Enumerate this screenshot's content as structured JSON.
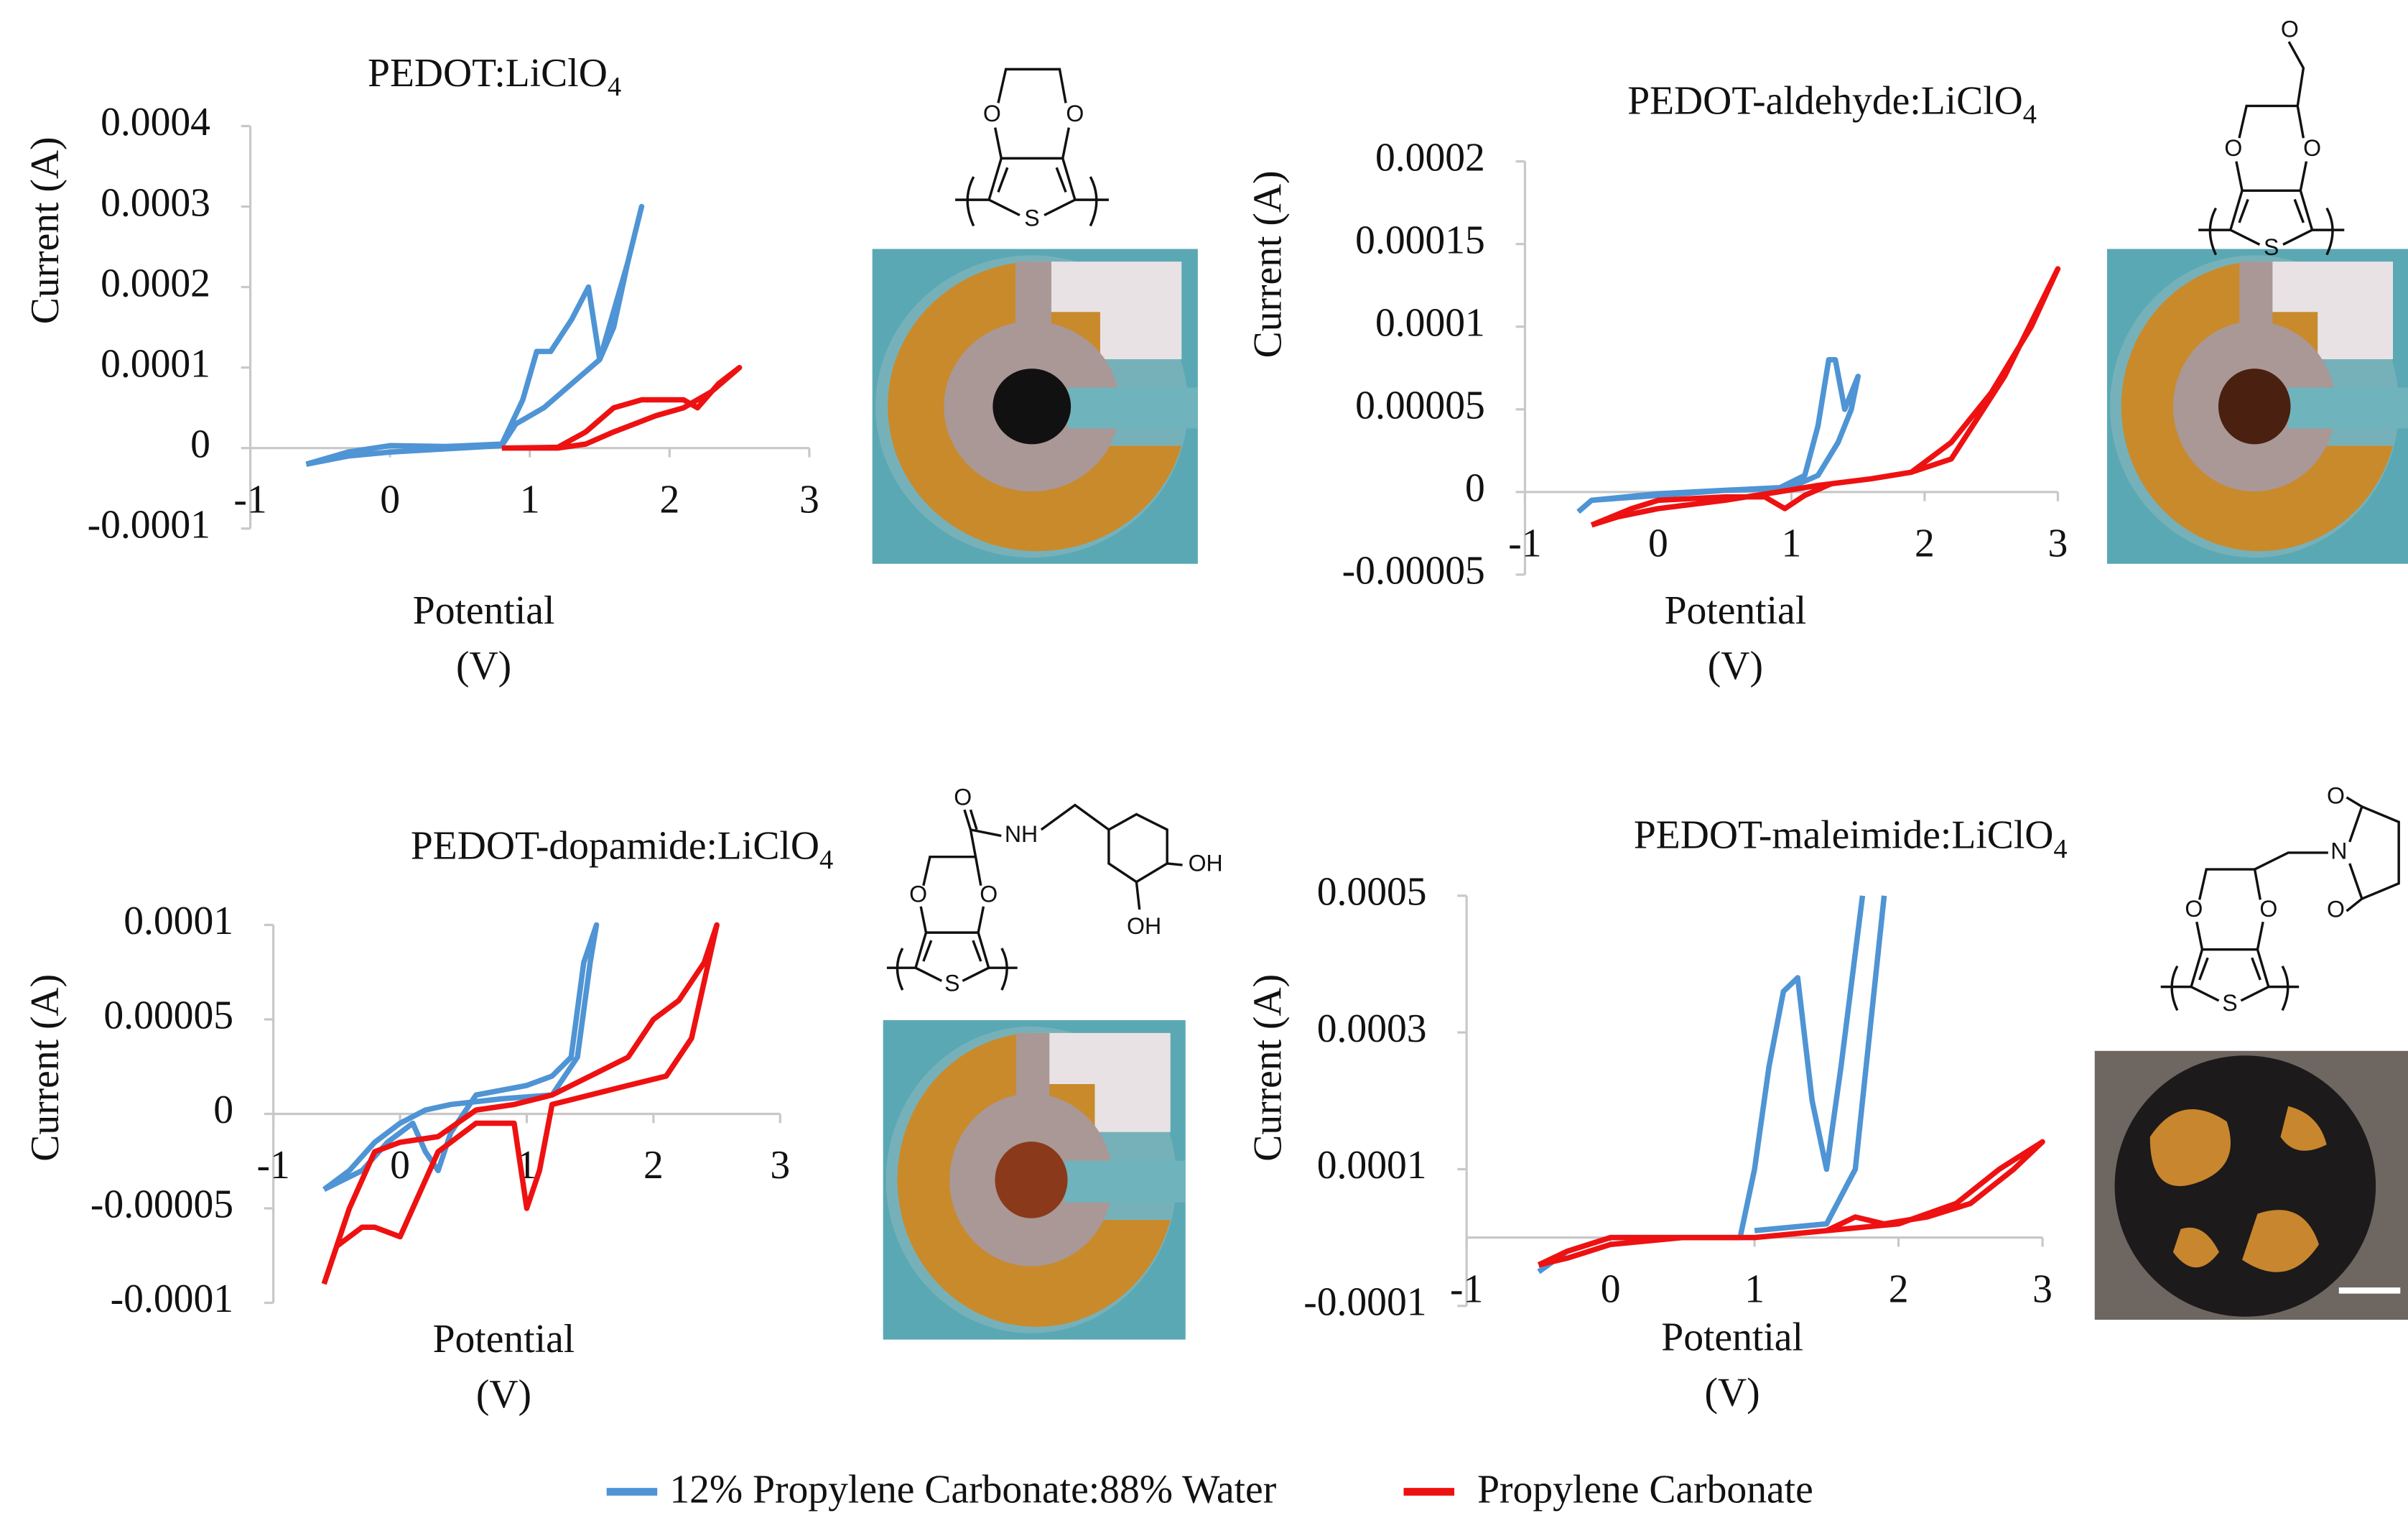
{
  "chart_data": [
    {
      "type": "line",
      "title": "PEDOT:LiClO",
      "title_subscript": "4",
      "y_label": "Current (A)",
      "x_label": [
        "Potential",
        "(V)"
      ],
      "xlim": [
        -1,
        3
      ],
      "xticks": [
        -1,
        0,
        1,
        2,
        3
      ],
      "ylim": [
        -0.0001,
        0.0004
      ],
      "yticks": [
        -0.0001,
        0,
        0.0001,
        0.0002,
        0.0003,
        0.0004
      ],
      "series": [
        {
          "color": "#4f94d4",
          "x": [
            -0.6,
            -0.3,
            0,
            0.4,
            0.8,
            0.95,
            1.05,
            1.15,
            1.3,
            1.42,
            1.5,
            1.6,
            1.7,
            1.8,
            1.7,
            1.6,
            1.5,
            1.3,
            1.1,
            0.9,
            0.8,
            0.4,
            0,
            -0.3,
            -0.6
          ],
          "values": [
            -2e-05,
            -5e-06,
            3e-06,
            2e-06,
            5e-06,
            6e-05,
            0.00012,
            0.00012,
            0.00016,
            0.0002,
            0.00011,
            0.00017,
            0.00023,
            0.0003,
            0.00023,
            0.00015,
            0.00011,
            8e-05,
            5e-05,
            3e-05,
            3e-06,
            -1e-06,
            -5e-06,
            -1e-05,
            -2e-05
          ]
        },
        {
          "color": "#ee1111",
          "x": [
            0.8,
            1.2,
            1.4,
            1.6,
            1.8,
            2.0,
            2.1,
            2.2,
            2.35,
            2.5,
            2.3,
            2.1,
            1.9,
            1.6,
            1.4,
            1.2,
            0.8
          ],
          "values": [
            0,
            1e-06,
            2e-05,
            5e-05,
            6e-05,
            6e-05,
            6e-05,
            5e-05,
            8e-05,
            0.0001,
            7e-05,
            5e-05,
            4e-05,
            2e-05,
            5e-06,
            0,
            0
          ]
        }
      ]
    },
    {
      "type": "line",
      "title": "PEDOT-aldehyde:LiClO",
      "title_subscript": "4",
      "y_label": "Current (A)",
      "x_label": [
        "Potential",
        "(V)"
      ],
      "xlim": [
        -1,
        3
      ],
      "xticks": [
        -1,
        0,
        1,
        2,
        3
      ],
      "ylim": [
        -5e-05,
        0.0002
      ],
      "yticks": [
        -5e-05,
        0,
        5e-05,
        0.0001,
        0.00015,
        0.0002
      ],
      "series": [
        {
          "color": "#4f94d4",
          "x": [
            -0.6,
            -0.5,
            0,
            0.5,
            0.9,
            1.1,
            1.2,
            1.28,
            1.33,
            1.4,
            1.5,
            1.45,
            1.35,
            1.2,
            1.0,
            0.5,
            0,
            -0.5,
            -0.6
          ],
          "values": [
            -1.2e-05,
            -5e-06,
            -1e-06,
            1e-06,
            2e-06,
            1e-05,
            4e-05,
            8e-05,
            8e-05,
            5e-05,
            7e-05,
            5e-05,
            3e-05,
            1e-05,
            3e-06,
            1e-06,
            -2e-06,
            -5e-06,
            -1.2e-05
          ]
        },
        {
          "color": "#ee1111",
          "x": [
            -0.5,
            -0.2,
            0,
            0.5,
            0.8,
            0.95,
            1.1,
            1.3,
            1.6,
            1.9,
            2.2,
            2.5,
            2.8,
            3.0,
            2.6,
            2.2,
            1.9,
            1.6,
            1.2,
            0.9,
            0.5,
            0,
            -0.3,
            -0.5
          ],
          "values": [
            -2e-05,
            -1e-05,
            -5e-06,
            -3e-06,
            -3e-06,
            -1e-05,
            -2e-06,
            5e-06,
            8e-06,
            1.2e-05,
            3e-05,
            6e-05,
            0.0001,
            0.000135,
            7e-05,
            2e-05,
            1.2e-05,
            8e-06,
            4e-06,
            0,
            -5e-06,
            -1e-05,
            -1.5e-05,
            -2e-05
          ]
        }
      ]
    },
    {
      "type": "line",
      "title": "PEDOT-dopamide:LiClO",
      "title_subscript": "4",
      "y_label": "Current (A)",
      "x_label": [
        "Potential",
        "(V)"
      ],
      "xlim": [
        -1,
        3
      ],
      "xticks": [
        -1,
        0,
        1,
        2,
        3
      ],
      "ylim": [
        -0.0001,
        0.0001
      ],
      "yticks": [
        -0.0001,
        -5e-05,
        0,
        5e-05,
        0.0001
      ],
      "series": [
        {
          "color": "#4f94d4",
          "x": [
            -0.6,
            -0.4,
            -0.2,
            0,
            0.2,
            0.4,
            0.8,
            1.2,
            1.4,
            1.5,
            1.55,
            1.45,
            1.35,
            1.2,
            1.0,
            0.6,
            0.4,
            0.3,
            0.2,
            0.1,
            -0.1,
            -0.3,
            -0.6
          ],
          "values": [
            -4e-05,
            -3e-05,
            -1.5e-05,
            -5e-06,
            2e-06,
            5e-06,
            8e-06,
            1e-05,
            3e-05,
            8e-05,
            0.0001,
            8e-05,
            3e-05,
            2e-05,
            1.5e-05,
            1e-05,
            -1e-05,
            -3e-05,
            -2e-05,
            -5e-06,
            -1.5e-05,
            -3e-05,
            -4e-05
          ]
        },
        {
          "color": "#ee1111",
          "x": [
            -0.6,
            -0.5,
            -0.3,
            -0.2,
            0,
            0.3,
            0.6,
            0.9,
            1.0,
            1.1,
            1.2,
            1.5,
            1.8,
            2.1,
            2.3,
            2.5,
            2.4,
            2.2,
            2.0,
            1.8,
            1.5,
            1.2,
            0.9,
            0.6,
            0.3,
            0,
            -0.2,
            -0.4,
            -0.6
          ],
          "values": [
            -9e-05,
            -7e-05,
            -6e-05,
            -6e-05,
            -6.5e-05,
            -2e-05,
            -5e-06,
            -5e-06,
            -5e-05,
            -3e-05,
            5e-06,
            1e-05,
            1.5e-05,
            2e-05,
            4e-05,
            0.0001,
            8e-05,
            6e-05,
            5e-05,
            3e-05,
            2e-05,
            1e-05,
            5e-06,
            2e-06,
            -1.2e-05,
            -1.5e-05,
            -2e-05,
            -5e-05,
            -9e-05
          ]
        }
      ]
    },
    {
      "type": "line",
      "title": "PEDOT-maleimide:LiClO",
      "title_subscript": "4",
      "y_label": "Current (A)",
      "x_label": [
        "Potential",
        "(V)"
      ],
      "xlim": [
        -1,
        3
      ],
      "xticks": [
        -1,
        0,
        1,
        2,
        3
      ],
      "ylim": [
        -0.0001,
        0.0005
      ],
      "yticks": [
        -0.0001,
        0.0001,
        0.0003,
        0.0005
      ],
      "series": [
        {
          "color": "#4f94d4",
          "x": [
            -0.5,
            -0.3,
            0,
            0.5,
            0.9,
            1.0,
            1.1,
            1.2,
            1.3,
            1.4,
            1.5,
            1.6,
            1.75,
            null,
            1.0,
            1.5,
            1.7,
            1.9
          ],
          "values": [
            -5e-05,
            -2e-05,
            0,
            0,
            0,
            0.0001,
            0.00025,
            0.00036,
            0.00038,
            0.0002,
            0.0001,
            0.00025,
            0.0005,
            null,
            1e-05,
            2e-05,
            0.0001,
            0.0005
          ]
        },
        {
          "color": "#ee1111",
          "x": [
            -0.5,
            -0.3,
            0,
            0.5,
            1.0,
            1.5,
            1.7,
            1.9,
            2.2,
            2.5,
            2.8,
            3.0,
            2.7,
            2.4,
            2.0,
            1.5,
            1.0,
            0.5,
            0,
            -0.3,
            -0.5
          ],
          "values": [
            -4e-05,
            -2e-05,
            0,
            0,
            0,
            1e-05,
            3e-05,
            2e-05,
            3e-05,
            5e-05,
            0.0001,
            0.00014,
            0.0001,
            5e-05,
            2e-05,
            1e-05,
            0,
            0,
            -1e-05,
            -3e-05,
            -4e-05
          ]
        }
      ]
    }
  ],
  "legend": [
    {
      "name": "12% Propylene Carbonate:88% Water",
      "color": "#4f94d4"
    },
    {
      "name": "Propylene Carbonate",
      "color": "#ee1111"
    }
  ],
  "structures": [
    {
      "atoms": [
        "O",
        "O",
        "S"
      ]
    },
    {
      "atoms": [
        "O",
        "O",
        "S",
        "O"
      ]
    },
    {
      "atoms": [
        "O",
        "O",
        "S",
        "O",
        "NH",
        "OH",
        "OH"
      ]
    },
    {
      "atoms": [
        "O",
        "O",
        "S",
        "N",
        "O",
        "O"
      ]
    }
  ]
}
